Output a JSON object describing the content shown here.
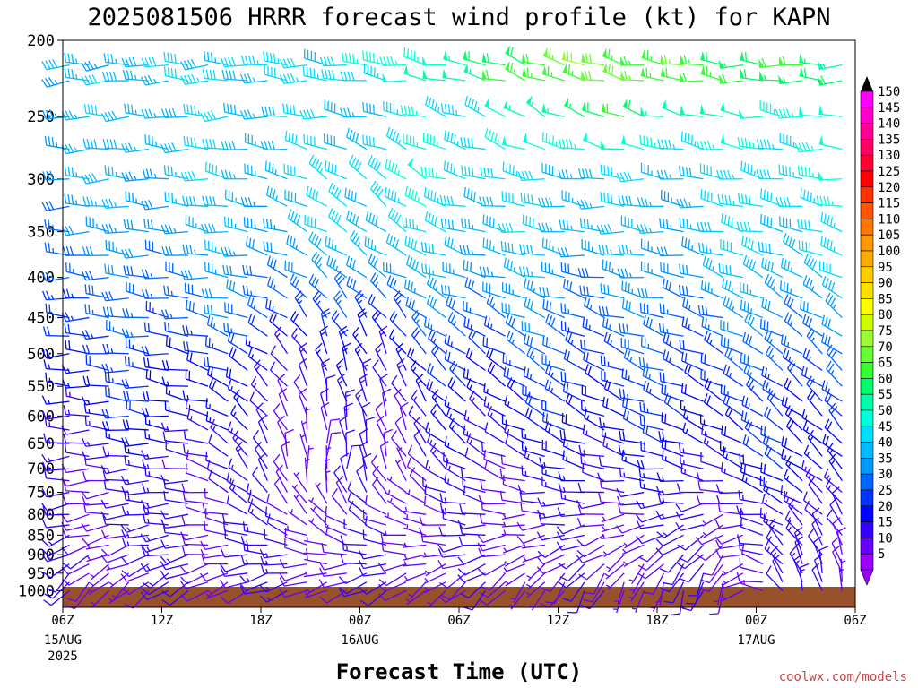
{
  "chart_data": {
    "type": "wind-barb",
    "title": "2025081506 HRRR forecast wind profile (kt) for KAPN",
    "xlabel": "Forecast Time (UTC)",
    "ylabel": "",
    "credit": "coolwx.com/models",
    "y_axis": {
      "scale": "pressure (inverted)",
      "ylim": [
        1000,
        200
      ],
      "ticks": [
        "200",
        "250",
        "300",
        "350",
        "400",
        "450",
        "500",
        "550",
        "600",
        "650",
        "700",
        "750",
        "800",
        "850",
        "900",
        "950",
        "1000"
      ]
    },
    "x_axis": {
      "range_hours": [
        0,
        48
      ],
      "ticks": [
        {
          "hour": 0,
          "label": "06Z",
          "date": "15AUG",
          "year": "2025"
        },
        {
          "hour": 6,
          "label": "12Z",
          "date": "",
          "year": ""
        },
        {
          "hour": 12,
          "label": "18Z",
          "date": "",
          "year": ""
        },
        {
          "hour": 18,
          "label": "00Z",
          "date": "16AUG",
          "year": ""
        },
        {
          "hour": 24,
          "label": "06Z",
          "date": "",
          "year": ""
        },
        {
          "hour": 30,
          "label": "12Z",
          "date": "",
          "year": ""
        },
        {
          "hour": 36,
          "label": "18Z",
          "date": "",
          "year": ""
        },
        {
          "hour": 42,
          "label": "00Z",
          "date": "17AUG",
          "year": ""
        },
        {
          "hour": 48,
          "label": "06Z",
          "date": "",
          "year": ""
        }
      ]
    },
    "colorbar": {
      "units": "kt",
      "labels": [
        "150",
        "145",
        "140",
        "135",
        "130",
        "125",
        "120",
        "115",
        "110",
        "105",
        "100",
        "95",
        "90",
        "85",
        "80",
        "75",
        "70",
        "65",
        "60",
        "55",
        "50",
        "45",
        "40",
        "35",
        "30",
        "25",
        "20",
        "15",
        "10",
        "5"
      ],
      "colors": [
        "#ff00ff",
        "#ff00cc",
        "#ff0099",
        "#ff0066",
        "#ff0033",
        "#ff0000",
        "#ff3300",
        "#ff5500",
        "#ff7700",
        "#ff9900",
        "#ffaa00",
        "#ffcc00",
        "#ffe000",
        "#ffff00",
        "#ccff00",
        "#99ff33",
        "#66ff33",
        "#33ff33",
        "#00ff66",
        "#00ffaa",
        "#00ffdd",
        "#00ddff",
        "#00bbff",
        "#0099ff",
        "#0066ff",
        "#0033ff",
        "#0000ff",
        "#3300ff",
        "#6600ff",
        "#9900ff"
      ]
    },
    "wind_profile": [
      {
        "level": 225,
        "dir": [
          265,
          268,
          270,
          272,
          275,
          278,
          280,
          290,
          285,
          280,
          275,
          270,
          270
        ],
        "speed": [
          35,
          38,
          40,
          40,
          42,
          45,
          52,
          62,
          68,
          65,
          60,
          58,
          56
        ]
      },
      {
        "level": 250,
        "dir": [
          265,
          270,
          270,
          270,
          275,
          280,
          290,
          300,
          290,
          285,
          280,
          275,
          270
        ],
        "speed": [
          35,
          38,
          40,
          40,
          38,
          40,
          45,
          50,
          60,
          55,
          50,
          48,
          45
        ]
      },
      {
        "level": 300,
        "dir": [
          270,
          270,
          275,
          280,
          300,
          310,
          285,
          280,
          275,
          275,
          280,
          280,
          275
        ],
        "speed": [
          35,
          35,
          38,
          38,
          40,
          45,
          45,
          40,
          40,
          38,
          40,
          45,
          45
        ]
      },
      {
        "level": 350,
        "dir": [
          270,
          275,
          275,
          280,
          300,
          305,
          285,
          280,
          275,
          275,
          280,
          285,
          285
        ],
        "speed": [
          30,
          32,
          35,
          35,
          38,
          42,
          40,
          38,
          38,
          35,
          38,
          42,
          42
        ]
      },
      {
        "level": 400,
        "dir": [
          270,
          275,
          275,
          280,
          310,
          300,
          285,
          285,
          280,
          280,
          290,
          300,
          300
        ],
        "speed": [
          28,
          28,
          30,
          30,
          32,
          35,
          35,
          35,
          32,
          32,
          35,
          40,
          38
        ]
      },
      {
        "level": 450,
        "dir": [
          270,
          275,
          280,
          290,
          330,
          320,
          300,
          295,
          290,
          285,
          290,
          300,
          305
        ],
        "speed": [
          25,
          25,
          28,
          28,
          22,
          25,
          28,
          30,
          28,
          28,
          30,
          32,
          32
        ]
      },
      {
        "level": 500,
        "dir": [
          270,
          275,
          280,
          300,
          340,
          330,
          305,
          300,
          295,
          290,
          295,
          305,
          310
        ],
        "speed": [
          20,
          22,
          22,
          18,
          15,
          18,
          22,
          25,
          25,
          25,
          25,
          28,
          28
        ]
      },
      {
        "level": 600,
        "dir": [
          270,
          275,
          280,
          320,
          350,
          340,
          310,
          300,
          295,
          290,
          300,
          310,
          315
        ],
        "speed": [
          15,
          18,
          18,
          12,
          10,
          12,
          15,
          18,
          20,
          20,
          20,
          20,
          22
        ]
      },
      {
        "level": 700,
        "dir": [
          265,
          270,
          275,
          330,
          10,
          340,
          300,
          290,
          285,
          280,
          290,
          300,
          320
        ],
        "speed": [
          12,
          12,
          12,
          10,
          8,
          10,
          12,
          12,
          15,
          15,
          15,
          18,
          18
        ]
      },
      {
        "level": 800,
        "dir": [
          260,
          265,
          270,
          300,
          320,
          300,
          280,
          270,
          265,
          260,
          250,
          300,
          330
        ],
        "speed": [
          10,
          12,
          12,
          10,
          8,
          8,
          10,
          10,
          10,
          10,
          10,
          12,
          15
        ]
      },
      {
        "level": 900,
        "dir": [
          240,
          250,
          260,
          270,
          280,
          270,
          260,
          250,
          240,
          230,
          220,
          330,
          340
        ],
        "speed": [
          10,
          10,
          12,
          12,
          10,
          10,
          8,
          8,
          8,
          8,
          10,
          12,
          12
        ]
      },
      {
        "level": 975,
        "dir": [
          220,
          230,
          240,
          250,
          250,
          240,
          230,
          220,
          210,
          200,
          200,
          340,
          350
        ],
        "speed": [
          8,
          8,
          10,
          10,
          10,
          8,
          8,
          8,
          8,
          8,
          8,
          10,
          10
        ]
      }
    ]
  }
}
